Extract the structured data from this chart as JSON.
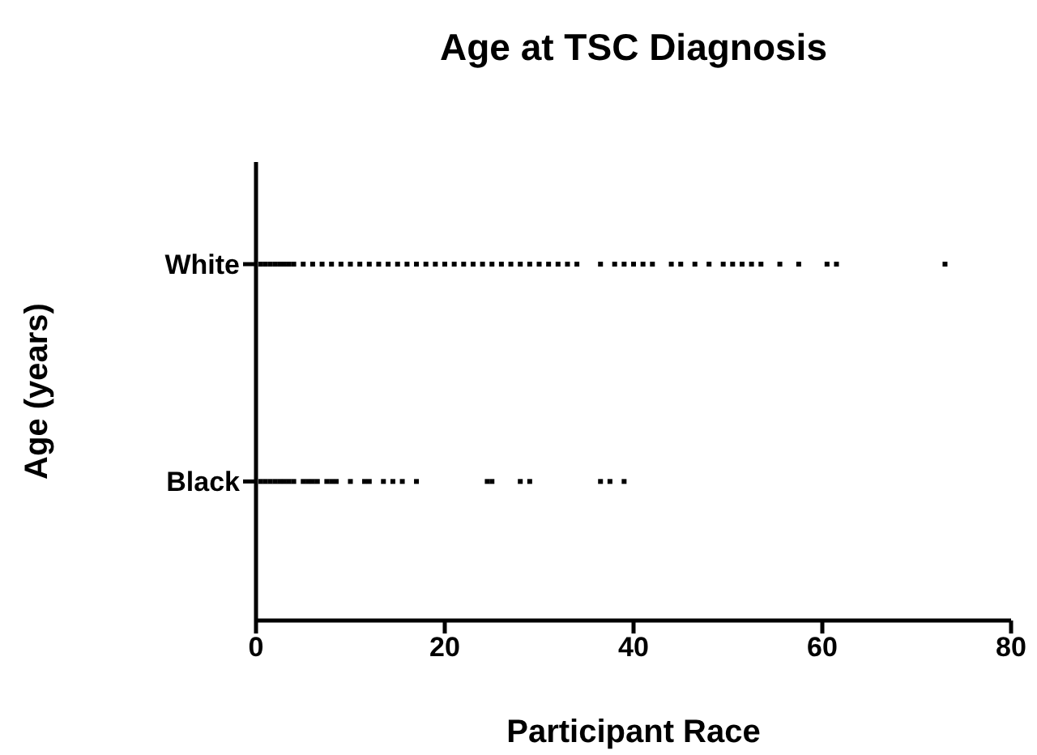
{
  "chart_data": {
    "type": "scatter",
    "orientation": "horizontal",
    "title": "Age at TSC Diagnosis",
    "xlabel": "Participant Race",
    "ylabel": "Age (years)",
    "categories": [
      "White",
      "Black"
    ],
    "xlim": [
      0,
      80
    ],
    "xticks": [
      0,
      20,
      40,
      60,
      80
    ],
    "marker": "square",
    "grid": false,
    "legend": false,
    "series": [
      {
        "color": "#000000",
        "x": [
          "White",
          "White",
          "White",
          "White",
          "White",
          "White",
          "White",
          "White",
          "White",
          "White",
          "White",
          "White",
          "White",
          "White",
          "White",
          "White",
          "White",
          "White",
          "White",
          "White",
          "White",
          "White",
          "White",
          "White",
          "White",
          "White",
          "White",
          "White",
          "White",
          "White",
          "White",
          "White",
          "White",
          "White",
          "White",
          "White",
          "White",
          "White",
          "White",
          "White",
          "White",
          "White",
          "White",
          "White",
          "White",
          "White",
          "White",
          "White",
          "White",
          "White",
          "White",
          "White",
          "White",
          "White",
          "White",
          "White",
          "White",
          "White"
        ],
        "values": [
          0.5,
          1,
          1.5,
          2,
          2.5,
          3,
          3.5,
          4,
          5,
          6,
          7,
          8,
          9,
          10,
          11,
          12,
          13,
          14,
          15,
          16,
          17,
          18,
          19,
          20,
          21,
          22,
          23,
          24,
          25,
          26,
          27,
          28,
          29,
          30,
          31,
          32,
          33,
          34,
          36.5,
          38,
          39,
          40,
          41,
          42,
          44,
          45,
          46.5,
          48,
          49.5,
          50.5,
          51.5,
          52.5,
          53.5,
          55.5,
          57.5,
          60.5,
          61.5,
          73
        ]
      },
      {
        "color": "#000000",
        "x": [
          "Black",
          "Black",
          "Black",
          "Black",
          "Black",
          "Black",
          "Black",
          "Black",
          "Black",
          "Black",
          "Black",
          "Black",
          "Black",
          "Black",
          "Black",
          "Black",
          "Black",
          "Black",
          "Black",
          "Black",
          "Black",
          "Black",
          "Black",
          "Black",
          "Black",
          "Black",
          "Black",
          "Black",
          "Black"
        ],
        "values": [
          0.5,
          1,
          1.5,
          2,
          2.5,
          3,
          3.5,
          4,
          5,
          5.5,
          6,
          6.5,
          7.5,
          8,
          8.5,
          10,
          11.5,
          12,
          13.5,
          14.5,
          15.5,
          17,
          24.5,
          25,
          28,
          29,
          36.5,
          37.5,
          39
        ]
      }
    ]
  }
}
